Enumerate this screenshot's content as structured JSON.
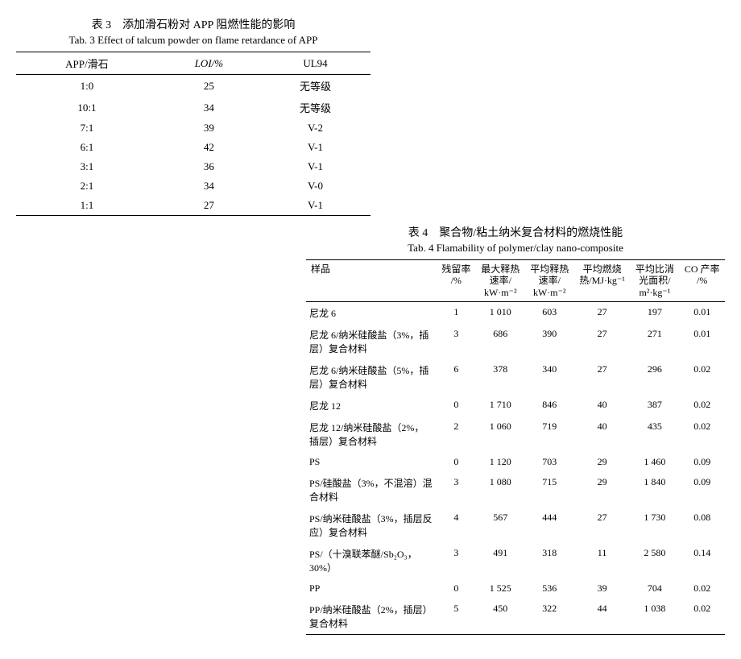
{
  "table3": {
    "title_cn": "表 3　添加滑石粉对 APP 阻燃性能的影响",
    "title_en": "Tab. 3 Effect of talcum powder on flame retardance of APP",
    "headers": [
      "APP/滑石",
      "LOI/%",
      "UL94"
    ],
    "rows": [
      [
        "1:0",
        "25",
        "无等级"
      ],
      [
        "10:1",
        "34",
        "无等级"
      ],
      [
        "7:1",
        "39",
        "V-2"
      ],
      [
        "6:1",
        "42",
        "V-1"
      ],
      [
        "3:1",
        "36",
        "V-1"
      ],
      [
        "2:1",
        "34",
        "V-0"
      ],
      [
        "1:1",
        "27",
        "V-1"
      ]
    ]
  },
  "table4": {
    "title_cn": "表 4　聚合物/粘土纳米复合材料的燃烧性能",
    "title_en": "Tab. 4 Flamability of polymer/clay nano-composite",
    "headers": [
      "样品",
      "残留率\n/%",
      "最大释热\n速率/\nkW·m⁻²",
      "平均释热\n速率/\nkW·m⁻²",
      "平均燃烧\n热/MJ·kg⁻¹",
      "平均比消\n光面积/\nm²·kg⁻¹",
      "CO 产率\n/%"
    ],
    "rows": [
      [
        "尼龙 6",
        "1",
        "1 010",
        "603",
        "27",
        "197",
        "0.01"
      ],
      [
        "尼龙 6/纳米硅酸盐（3%，插层）复合材料",
        "3",
        "686",
        "390",
        "27",
        "271",
        "0.01"
      ],
      [
        "尼龙 6/纳米硅酸盐（5%，插层）复合材料",
        "6",
        "378",
        "340",
        "27",
        "296",
        "0.02"
      ],
      [
        "尼龙 12",
        "0",
        "1 710",
        "846",
        "40",
        "387",
        "0.02"
      ],
      [
        "尼龙 12/纳米硅酸盐（2%，插层）复合材料",
        "2",
        "1 060",
        "719",
        "40",
        "435",
        "0.02"
      ],
      [
        "PS",
        "0",
        "1 120",
        "703",
        "29",
        "1 460",
        "0.09"
      ],
      [
        "PS/硅酸盐（3%，不混溶）混合材料",
        "3",
        "1 080",
        "715",
        "29",
        "1 840",
        "0.09"
      ],
      [
        "PS/纳米硅酸盐（3%，插层反应）复合材料",
        "4",
        "567",
        "444",
        "27",
        "1 730",
        "0.08"
      ],
      [
        "PS/（十溴联苯醚/Sb₂O₃，30%）",
        "3",
        "491",
        "318",
        "11",
        "2 580",
        "0.14"
      ],
      [
        "PP",
        "0",
        "1 525",
        "536",
        "39",
        "704",
        "0.02"
      ],
      [
        "PP/纳米硅酸盐（2%，插层）复合材料",
        "5",
        "450",
        "322",
        "44",
        "1 038",
        "0.02"
      ]
    ]
  }
}
